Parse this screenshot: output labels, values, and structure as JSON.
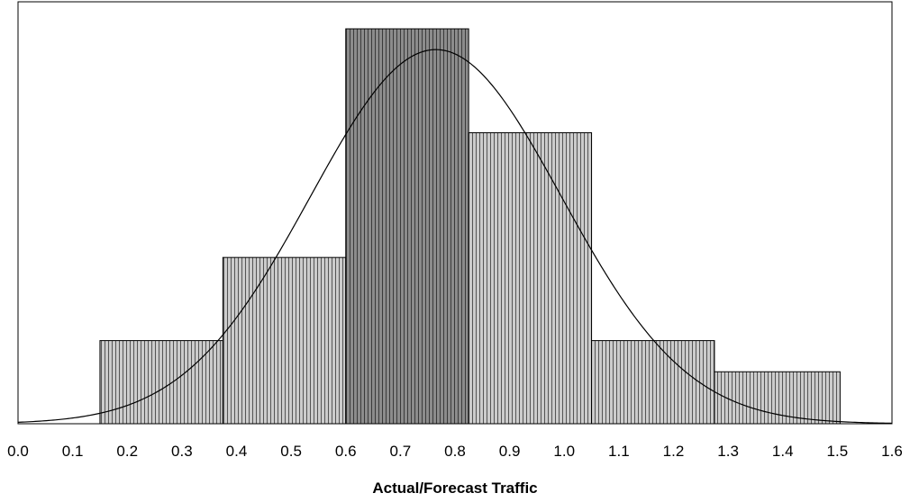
{
  "chart_data": {
    "type": "bar",
    "title": "",
    "xlabel": "Actual/Forecast Traffic",
    "ylabel": "",
    "xlim": [
      0.0,
      1.6
    ],
    "x_ticks": [
      "0.0",
      "0.1",
      "0.2",
      "0.3",
      "0.4",
      "0.5",
      "0.6",
      "0.7",
      "0.8",
      "0.9",
      "1.0",
      "1.1",
      "1.2",
      "1.3",
      "1.4",
      "1.5",
      "1.6"
    ],
    "ylim": [
      0,
      20.3
    ],
    "grid": false,
    "legend": "none",
    "bins": [
      {
        "x0": 0.15,
        "x1": 0.375,
        "value": 4
      },
      {
        "x0": 0.375,
        "x1": 0.6,
        "value": 8
      },
      {
        "x0": 0.6,
        "x1": 0.825,
        "value": 19
      },
      {
        "x0": 0.825,
        "x1": 1.05,
        "value": 14
      },
      {
        "x0": 1.05,
        "x1": 1.275,
        "value": 4
      },
      {
        "x0": 1.275,
        "x1": 1.505,
        "value": 2.5
      }
    ],
    "normal_curve": {
      "mean": 0.765,
      "sd": 0.23,
      "peak": 18.0
    },
    "colors": {
      "bar_fill": "#cccccc",
      "bar_fill_peak": "#8c8c8c",
      "bar_stripe": "#000000",
      "bar_edge": "#000000",
      "curve": "#000000",
      "frame": "#000000"
    }
  }
}
